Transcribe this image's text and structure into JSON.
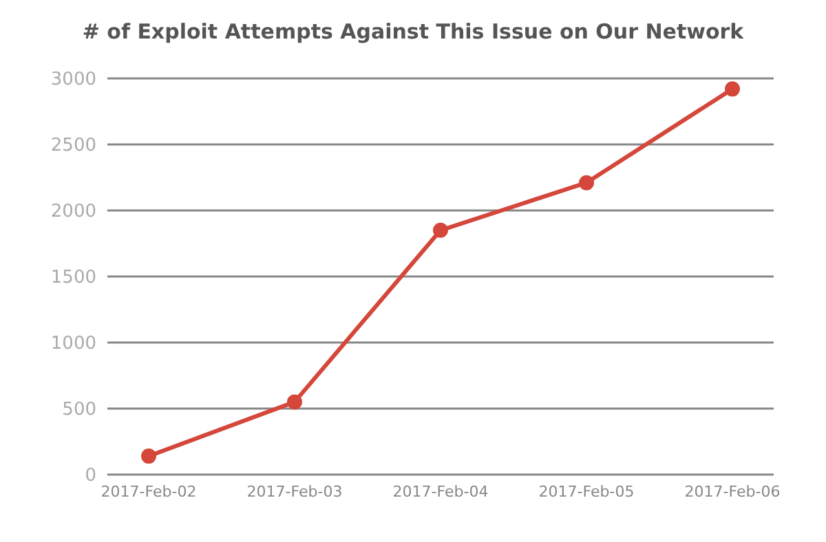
{
  "chart_data": {
    "type": "line",
    "title": "# of Exploit Attempts Against This Issue on Our Network",
    "categories": [
      "2017-Feb-02",
      "2017-Feb-03",
      "2017-Feb-04",
      "2017-Feb-05",
      "2017-Feb-06"
    ],
    "series": [
      {
        "color": "#d4473a",
        "values": [
          140,
          550,
          1850,
          2210,
          2920
        ]
      }
    ],
    "ylim": [
      0,
      3000
    ],
    "yticks": [
      0,
      500,
      1000,
      1500,
      2000,
      2500,
      3000
    ],
    "grid": "y",
    "marker": "circle"
  }
}
